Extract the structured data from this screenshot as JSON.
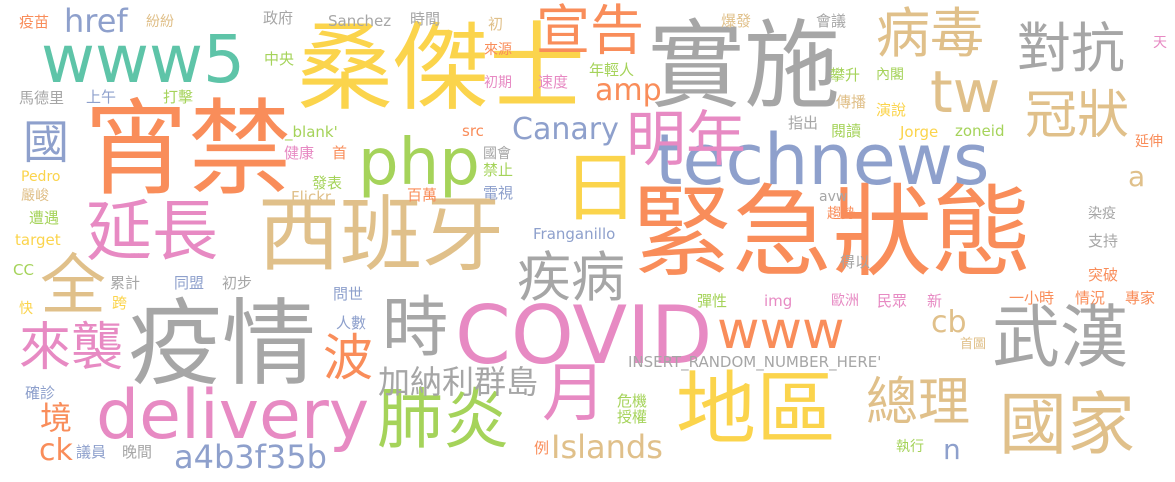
{
  "colors": {
    "pink": "#f28d96",
    "orange": "#f98d5a",
    "gold": "#fbd44c",
    "tan": "#e0c08a",
    "gray": "#a6a6a6",
    "green": "#a5d35a",
    "teal": "#5ec4a8",
    "blue": "#8ea0cc",
    "magenta": "#e78ac3"
  },
  "words": [
    {
      "text": "緊急狀態",
      "color": "orange"
    },
    {
      "text": "宵禁",
      "color": "orange"
    },
    {
      "text": "桑傑士",
      "color": "gold"
    },
    {
      "text": "西班牙",
      "color": "tan"
    },
    {
      "text": "實施",
      "color": "gray"
    },
    {
      "text": "疫情",
      "color": "gray"
    },
    {
      "text": "technews",
      "color": "blue"
    },
    {
      "text": "COVID",
      "color": "magenta"
    },
    {
      "text": "delivery",
      "color": "magenta"
    },
    {
      "text": "www5",
      "color": "teal"
    },
    {
      "text": "php",
      "color": "green"
    },
    {
      "text": "延長",
      "color": "magenta"
    },
    {
      "text": "地區",
      "color": "gold"
    },
    {
      "text": "武漢",
      "color": "gray"
    },
    {
      "text": "國家",
      "color": "tan"
    },
    {
      "text": "www",
      "color": "orange"
    },
    {
      "text": "日",
      "color": "gold"
    },
    {
      "text": "明年",
      "color": "magenta"
    },
    {
      "text": "全",
      "color": "tan"
    },
    {
      "text": "時",
      "color": "gray"
    },
    {
      "text": "肺炎",
      "color": "green"
    },
    {
      "text": "月",
      "color": "magenta"
    },
    {
      "text": "tw",
      "color": "tan"
    },
    {
      "text": "宣告",
      "color": "orange"
    },
    {
      "text": "病毒",
      "color": "tan"
    },
    {
      "text": "對抗",
      "color": "gray"
    },
    {
      "text": "冠狀",
      "color": "tan"
    },
    {
      "text": "疾病",
      "color": "gray"
    },
    {
      "text": "來襲",
      "color": "magenta"
    },
    {
      "text": "總理",
      "color": "tan"
    },
    {
      "text": "波",
      "color": "orange"
    },
    {
      "text": "國",
      "color": "blue"
    },
    {
      "text": "href",
      "color": "blue"
    },
    {
      "text": "加納利群島",
      "color": "gray"
    },
    {
      "text": "a4b3f35b",
      "color": "blue"
    },
    {
      "text": "Islands",
      "color": "tan"
    },
    {
      "text": "Canary",
      "color": "blue"
    },
    {
      "text": "amp",
      "color": "orange"
    },
    {
      "text": "cb",
      "color": "tan"
    },
    {
      "text": "ck",
      "color": "orange"
    },
    {
      "text": "境",
      "color": "orange"
    },
    {
      "text": "a",
      "color": "tan"
    },
    {
      "text": "n",
      "color": "blue"
    },
    {
      "text": "疫苗",
      "color": "orange"
    },
    {
      "text": "紛紛",
      "color": "tan"
    },
    {
      "text": "政府",
      "color": "gray"
    },
    {
      "text": "Sanchez",
      "color": "gray"
    },
    {
      "text": "時間",
      "color": "gray"
    },
    {
      "text": "初",
      "color": "tan"
    },
    {
      "text": "來源",
      "color": "orange"
    },
    {
      "text": "爆發",
      "color": "tan"
    },
    {
      "text": "會議",
      "color": "gray"
    },
    {
      "text": "天",
      "color": "magenta"
    },
    {
      "text": "中央",
      "color": "green"
    },
    {
      "text": "初期",
      "color": "magenta"
    },
    {
      "text": "速度",
      "color": "magenta"
    },
    {
      "text": "年輕人",
      "color": "green"
    },
    {
      "text": "攀升",
      "color": "green"
    },
    {
      "text": "內閣",
      "color": "green"
    },
    {
      "text": "馬德里",
      "color": "gray"
    },
    {
      "text": "上午",
      "color": "blue"
    },
    {
      "text": "打擊",
      "color": "green"
    },
    {
      "text": "傳播",
      "color": "tan"
    },
    {
      "text": "演說",
      "color": "gold"
    },
    {
      "text": "指出",
      "color": "gray"
    },
    {
      "text": "閱讀",
      "color": "green"
    },
    {
      "text": "_blank'",
      "color": "green"
    },
    {
      "text": "src",
      "color": "orange"
    },
    {
      "text": "Jorge",
      "color": "gold"
    },
    {
      "text": "zoneid",
      "color": "green"
    },
    {
      "text": "延伸",
      "color": "orange"
    },
    {
      "text": "健康",
      "color": "magenta"
    },
    {
      "text": "首",
      "color": "orange"
    },
    {
      "text": "國會",
      "color": "gray"
    },
    {
      "text": "禁止",
      "color": "green"
    },
    {
      "text": "Pedro",
      "color": "gold"
    },
    {
      "text": "發表",
      "color": "green"
    },
    {
      "text": "嚴峻",
      "color": "tan"
    },
    {
      "text": "Flickr",
      "color": "tan"
    },
    {
      "text": "百萬",
      "color": "orange"
    },
    {
      "text": "電視",
      "color": "blue"
    },
    {
      "text": "avw",
      "color": "gray"
    },
    {
      "text": "趨勢",
      "color": "orange"
    },
    {
      "text": "遭遇",
      "color": "green"
    },
    {
      "text": "染疫",
      "color": "gray"
    },
    {
      "text": "target",
      "color": "gold"
    },
    {
      "text": "Franganillo",
      "color": "blue"
    },
    {
      "text": "支持",
      "color": "gray"
    },
    {
      "text": "CC",
      "color": "green"
    },
    {
      "text": "得以",
      "color": "gray"
    },
    {
      "text": "累計",
      "color": "gray"
    },
    {
      "text": "同盟",
      "color": "blue"
    },
    {
      "text": "初步",
      "color": "gray"
    },
    {
      "text": "突破",
      "color": "orange"
    },
    {
      "text": "跨",
      "color": "gold"
    },
    {
      "text": "問世",
      "color": "blue"
    },
    {
      "text": "彈性",
      "color": "green"
    },
    {
      "text": "img",
      "color": "magenta"
    },
    {
      "text": "歐洲",
      "color": "magenta"
    },
    {
      "text": "民眾",
      "color": "magenta"
    },
    {
      "text": "新",
      "color": "magenta"
    },
    {
      "text": "一小時",
      "color": "orange"
    },
    {
      "text": "情況",
      "color": "orange"
    },
    {
      "text": "專家",
      "color": "orange"
    },
    {
      "text": "快",
      "color": "gold"
    },
    {
      "text": "人數",
      "color": "blue"
    },
    {
      "text": "首圖",
      "color": "tan"
    },
    {
      "text": "INSERT_RANDOM_NUMBER_HERE'",
      "color": "gray"
    },
    {
      "text": "確診",
      "color": "blue"
    },
    {
      "text": "危機",
      "color": "green"
    },
    {
      "text": "授權",
      "color": "green"
    },
    {
      "text": "例",
      "color": "orange"
    },
    {
      "text": "執行",
      "color": "green"
    },
    {
      "text": "議員",
      "color": "blue"
    },
    {
      "text": "晚間",
      "color": "gray"
    }
  ]
}
